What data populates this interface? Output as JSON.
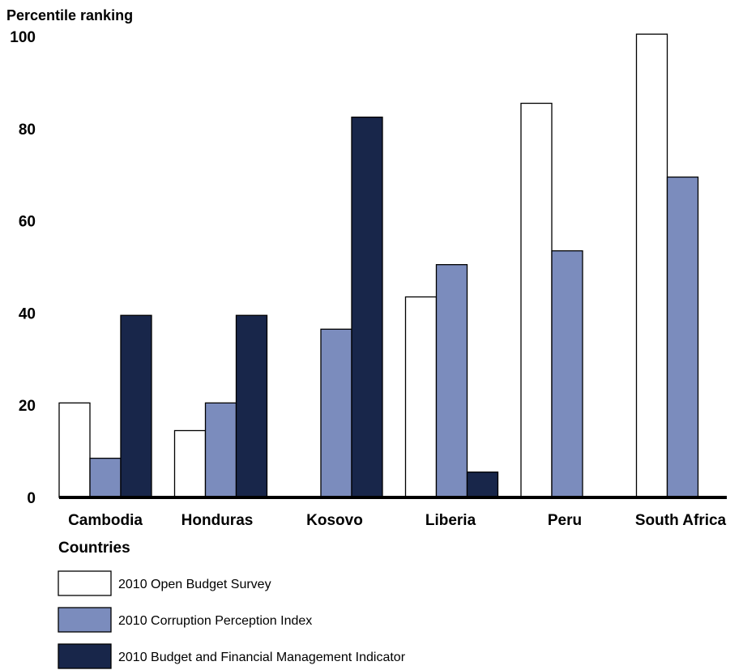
{
  "chart_data": {
    "type": "bar",
    "ylabel": "Percentile ranking",
    "xlabel": "Countries",
    "ylim": [
      0,
      100
    ],
    "yticks": [
      0,
      20,
      40,
      60,
      80,
      100
    ],
    "grid": false,
    "legend_position": "bottom-left",
    "categories": [
      "Cambodia",
      "Honduras",
      "Kosovo",
      "Liberia",
      "Peru",
      "South Africa"
    ],
    "series": [
      {
        "name": "2010 Open Budget Survey",
        "color": "#ffffff",
        "values": [
          20.5,
          14.5,
          null,
          43.5,
          85.5,
          100.5
        ]
      },
      {
        "name": "2010 Corruption Perception Index",
        "color": "#7b8cbd",
        "values": [
          8.5,
          20.5,
          36.5,
          50.5,
          53.5,
          69.5
        ]
      },
      {
        "name": "2010 Budget and Financial Management Indicator",
        "color": "#18264a",
        "values": [
          39.5,
          39.5,
          82.5,
          5.5,
          null,
          null
        ]
      }
    ]
  }
}
